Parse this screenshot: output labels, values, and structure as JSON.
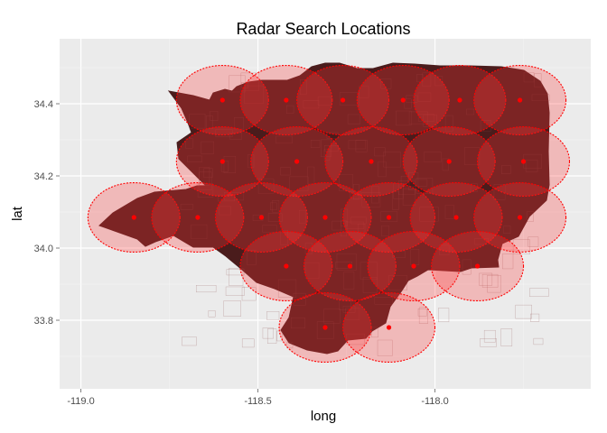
{
  "chart_data": {
    "type": "scatter",
    "title": "Radar Search Locations",
    "xlabel": "long",
    "ylabel": "lat",
    "xlim": [
      -119.06,
      -117.56
    ],
    "ylim": [
      33.61,
      34.58
    ],
    "x_ticks": [
      -119.0,
      -118.5,
      -118.0
    ],
    "x_tick_labels": [
      "-119.0",
      "-118.5",
      "-118.0"
    ],
    "y_ticks": [
      33.8,
      34.0,
      34.2,
      34.4
    ],
    "y_tick_labels": [
      "33.8",
      "34.0",
      "34.2",
      "34.4"
    ],
    "grid": true,
    "legend": "none",
    "colors": {
      "panel": "#ebebeb",
      "grid_major": "#ffffff",
      "grid_minor": "#f5f5f5",
      "region_fill": "#4a1c1c",
      "region_lines": "#8a4a4a",
      "circle_fill": "#ff3b3b",
      "circle_stroke": "#ff0000",
      "point": "#ff0000"
    },
    "search_radius_deg": 0.13,
    "points": [
      {
        "x": -118.6,
        "y": 34.41
      },
      {
        "x": -118.42,
        "y": 34.41
      },
      {
        "x": -118.26,
        "y": 34.41
      },
      {
        "x": -118.09,
        "y": 34.41
      },
      {
        "x": -117.93,
        "y": 34.41
      },
      {
        "x": -117.76,
        "y": 34.41
      },
      {
        "x": -118.6,
        "y": 34.24
      },
      {
        "x": -118.39,
        "y": 34.24
      },
      {
        "x": -118.18,
        "y": 34.24
      },
      {
        "x": -117.96,
        "y": 34.24
      },
      {
        "x": -117.75,
        "y": 34.24
      },
      {
        "x": -118.85,
        "y": 34.085
      },
      {
        "x": -118.67,
        "y": 34.085
      },
      {
        "x": -118.49,
        "y": 34.085
      },
      {
        "x": -118.31,
        "y": 34.085
      },
      {
        "x": -118.13,
        "y": 34.085
      },
      {
        "x": -117.94,
        "y": 34.085
      },
      {
        "x": -117.76,
        "y": 34.085
      },
      {
        "x": -118.42,
        "y": 33.95
      },
      {
        "x": -118.24,
        "y": 33.95
      },
      {
        "x": -118.06,
        "y": 33.95
      },
      {
        "x": -117.88,
        "y": 33.95
      },
      {
        "x": -118.31,
        "y": 33.78
      },
      {
        "x": -118.13,
        "y": 33.78
      }
    ]
  }
}
